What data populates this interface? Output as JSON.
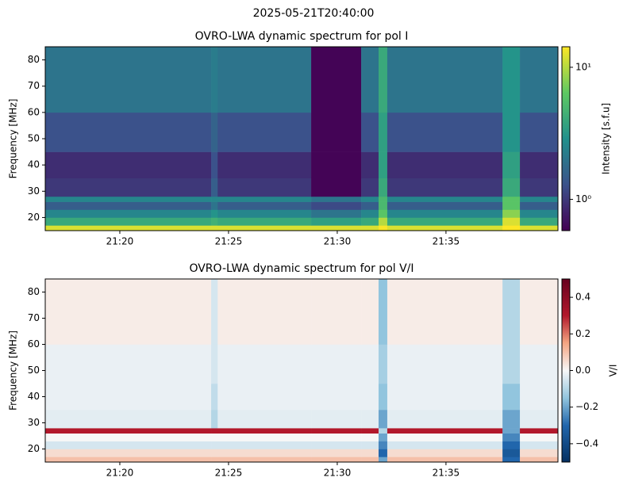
{
  "suptitle": "2025-05-21T20:40:00",
  "chart_data": [
    {
      "type": "heatmap",
      "title": "OVRO-LWA dynamic spectrum for pol I",
      "ylabel": "Frequency [MHz]",
      "colorbar_label": "Intensity [s.f.u]",
      "colormap": "viridis",
      "color_scale": "log",
      "clim": [
        0.58,
        14.3
      ],
      "cticks": [
        {
          "value": 1,
          "label": "10⁰"
        },
        {
          "value": 10,
          "label": "10¹"
        }
      ],
      "xlim": [
        1276.57,
        1300.15
      ],
      "ylim": [
        15,
        85
      ],
      "xticks": [
        {
          "value": 1280,
          "label": "21:20"
        },
        {
          "value": 1285,
          "label": "21:25"
        },
        {
          "value": 1290,
          "label": "21:30"
        },
        {
          "value": 1295,
          "label": "21:35"
        }
      ],
      "yticks": [
        20,
        30,
        40,
        50,
        60,
        70,
        80
      ],
      "x_edges": [
        1276.57,
        1284.2,
        1284.5,
        1288.8,
        1291.1,
        1291.9,
        1292.3,
        1297.6,
        1298.4,
        1300.15
      ],
      "y_edges": [
        15,
        17,
        20,
        23,
        26,
        28,
        35,
        45,
        60,
        85
      ],
      "z": [
        [
          12,
          12,
          12,
          12,
          12,
          14,
          12,
          15,
          12
        ],
        [
          4,
          4.5,
          4,
          3.5,
          4,
          10,
          4,
          12,
          4
        ],
        [
          2.5,
          3,
          2.5,
          2,
          2.5,
          6,
          2.5,
          8,
          2.5
        ],
        [
          1.5,
          2,
          1.5,
          1.2,
          1.5,
          5,
          1.5,
          6,
          1.5
        ],
        [
          2.5,
          2.5,
          2.5,
          2,
          2.5,
          5,
          2.5,
          6,
          2.5
        ],
        [
          1,
          1.5,
          1,
          0.6,
          1,
          4,
          1,
          4,
          1
        ],
        [
          0.9,
          1.3,
          0.9,
          0.6,
          0.9,
          3.5,
          0.9,
          3.5,
          0.9
        ],
        [
          1.3,
          1.6,
          1.3,
          0.6,
          1.3,
          3.5,
          1.3,
          3,
          1.3
        ],
        [
          2,
          2.2,
          2,
          0.6,
          2,
          4,
          2,
          3,
          2
        ]
      ]
    },
    {
      "type": "heatmap",
      "title": "OVRO-LWA dynamic spectrum for pol V/I",
      "ylabel": "Frequency [MHz]",
      "colorbar_label": "V/I",
      "colormap": "RdBu_r",
      "color_scale": "linear",
      "clim": [
        -0.5,
        0.5
      ],
      "cticks": [
        0.4,
        0.2,
        {
          "value": 0,
          "label": "0.0"
        },
        {
          "value": -0.2,
          "label": "−0.2"
        },
        {
          "value": -0.4,
          "label": "−0.4"
        }
      ],
      "xlim": [
        1276.57,
        1300.15
      ],
      "ylim": [
        15,
        85
      ],
      "xticks": [
        {
          "value": 1280,
          "label": "21:20"
        },
        {
          "value": 1285,
          "label": "21:25"
        },
        {
          "value": 1290,
          "label": "21:30"
        },
        {
          "value": 1295,
          "label": "21:35"
        }
      ],
      "yticks": [
        20,
        30,
        40,
        50,
        60,
        70,
        80
      ],
      "x_edges": [
        1276.57,
        1284.2,
        1284.5,
        1288.8,
        1291.1,
        1291.9,
        1292.3,
        1297.6,
        1298.4,
        1300.15
      ],
      "y_edges": [
        15,
        17,
        20,
        23,
        26,
        28,
        35,
        45,
        60,
        85
      ],
      "z": [
        [
          0.1,
          0.1,
          0.1,
          0.1,
          0.1,
          -0.2,
          0.1,
          -0.3,
          0.1
        ],
        [
          0.05,
          0.05,
          0.05,
          0.05,
          0.05,
          -0.3,
          0.05,
          -0.35,
          0.05
        ],
        [
          -0.05,
          -0.05,
          -0.05,
          -0.05,
          -0.05,
          -0.25,
          -0.05,
          -0.3,
          -0.05
        ],
        [
          0,
          0,
          0,
          0,
          0,
          -0.2,
          0,
          -0.25,
          0
        ],
        [
          0.3,
          0.3,
          0.3,
          0.3,
          0.3,
          -0.1,
          0.3,
          -0.2,
          0.3
        ],
        [
          -0.03,
          -0.1,
          -0.03,
          -0.03,
          -0.03,
          -0.2,
          -0.03,
          -0.2,
          -0.03
        ],
        [
          -0.02,
          -0.08,
          -0.02,
          -0.02,
          -0.02,
          -0.15,
          -0.02,
          -0.15,
          -0.02
        ],
        [
          -0.02,
          -0.05,
          -0.02,
          -0.02,
          -0.02,
          -0.12,
          -0.02,
          -0.1,
          -0.02
        ],
        [
          0.02,
          -0.05,
          0.02,
          0.02,
          0.02,
          -0.15,
          0.02,
          -0.1,
          0.02
        ]
      ]
    }
  ]
}
